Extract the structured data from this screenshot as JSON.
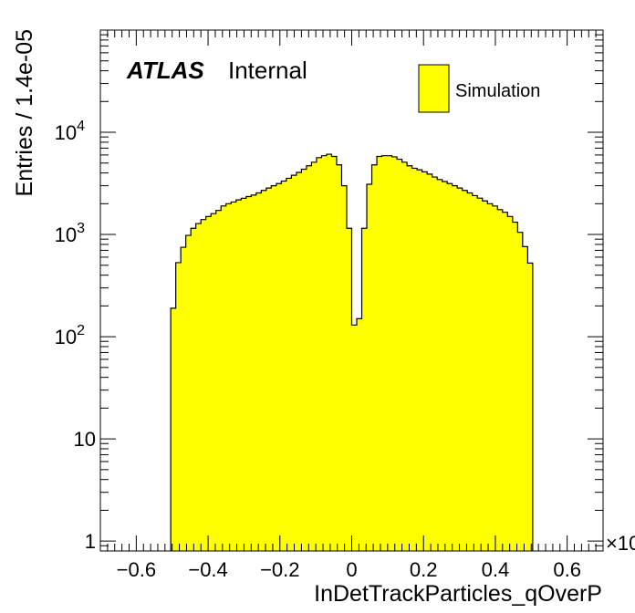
{
  "chart_data": {
    "type": "histogram",
    "title": "",
    "xlabel": "InDetTrackParticles_qOverP",
    "ylabel": "Entries / 1.4e-05",
    "x_multiplier_label": "×10",
    "y_scale": "log",
    "xlim": [
      -0.7,
      0.7
    ],
    "ylim": [
      0.8,
      100000
    ],
    "x_ticks": [
      "−0.6",
      "−0.4",
      "−0.2",
      "0",
      "0.2",
      "0.4",
      "0.6"
    ],
    "x_tick_values": [
      -0.6,
      -0.4,
      -0.2,
      0,
      0.2,
      0.4,
      0.6
    ],
    "y_tick_labels": [
      {
        "value": 1,
        "base": "1",
        "exp": ""
      },
      {
        "value": 10,
        "base": "10",
        "exp": ""
      },
      {
        "value": 100,
        "base": "10",
        "exp": "2"
      },
      {
        "value": 1000,
        "base": "10",
        "exp": "3"
      },
      {
        "value": 10000,
        "base": "10",
        "exp": "4"
      }
    ],
    "fill_color": "#ffff00",
    "line_color": "#000000",
    "atlas_label": "ATLAS",
    "atlas_sublabel": "Internal",
    "legend": {
      "position": "top-right",
      "entries": [
        {
          "label": "Simulation",
          "color": "#ffff00"
        }
      ]
    },
    "bin_width": 0.014,
    "bin_edges_range": [
      -0.504,
      0.504
    ],
    "counts": [
      190,
      530,
      750,
      980,
      1150,
      1280,
      1400,
      1500,
      1600,
      1720,
      1900,
      2000,
      2080,
      2180,
      2260,
      2350,
      2430,
      2550,
      2700,
      2850,
      3000,
      3150,
      3330,
      3550,
      3800,
      4050,
      4350,
      4700,
      5100,
      5650,
      5900,
      6100,
      5800,
      4800,
      3000,
      1150,
      130,
      150,
      1150,
      3100,
      4800,
      5800,
      5900,
      5900,
      5750,
      5450,
      5100,
      4700,
      4450,
      4300,
      4100,
      3900,
      3650,
      3450,
      3300,
      3150,
      3000,
      2850,
      2700,
      2550,
      2400,
      2270,
      2130,
      2000,
      1900,
      1750,
      1650,
      1500,
      1320,
      1050,
      760,
      525
    ]
  }
}
